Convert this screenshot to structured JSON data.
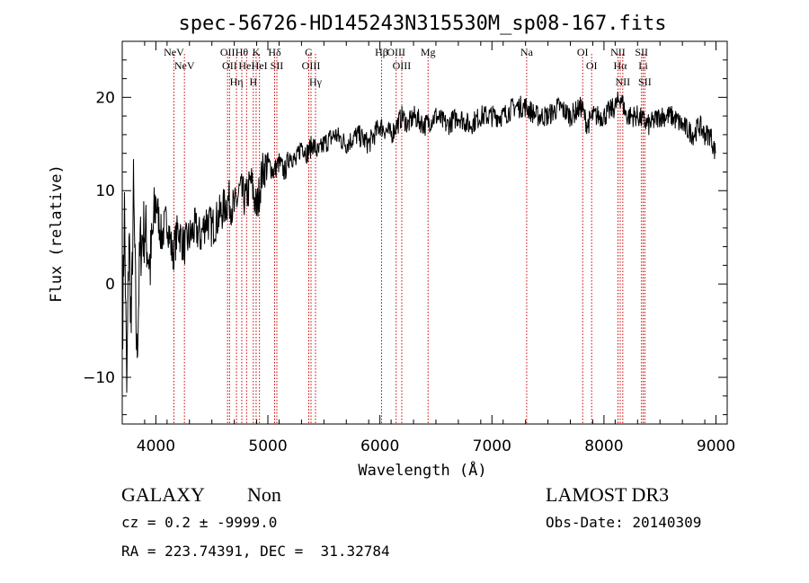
{
  "chart_data": {
    "type": "line",
    "title": "spec-56726-HD145243N315530M_sp08-167.fits",
    "xlabel": "Wavelength (Å)",
    "ylabel": "Flux (relative)",
    "xlim": [
      3700,
      9100
    ],
    "ylim": [
      -15,
      26
    ],
    "x_ticks": [
      4000,
      5000,
      6000,
      7000,
      8000,
      9000
    ],
    "x_tick_labels": [
      "4000",
      "5000",
      "6000",
      "7000",
      "8000",
      "9000"
    ],
    "y_ticks": [
      -10,
      0,
      10,
      20
    ],
    "y_tick_labels": [
      "−10",
      "0",
      "10",
      "20"
    ],
    "series": [
      {
        "name": "spectrum",
        "color": "#000000",
        "x": [
          3705,
          3720,
          3740,
          3760,
          3780,
          3800,
          3830,
          3860,
          3900,
          3950,
          4000,
          4050,
          4100,
          4150,
          4200,
          4250,
          4300,
          4350,
          4400,
          4450,
          4500,
          4550,
          4600,
          4650,
          4700,
          4750,
          4800,
          4850,
          4900,
          4950,
          5000,
          5050,
          5100,
          5150,
          5200,
          5250,
          5300,
          5350,
          5400,
          5450,
          5500,
          5600,
          5700,
          5800,
          5900,
          6000,
          6100,
          6200,
          6250,
          6300,
          6400,
          6500,
          6600,
          6700,
          6800,
          6900,
          7000,
          7100,
          7200,
          7300,
          7400,
          7500,
          7600,
          7700,
          7800,
          7850,
          7900,
          8000,
          8100,
          8150,
          8200,
          8300,
          8400,
          8500,
          8600,
          8700,
          8800,
          8850,
          8900,
          8950,
          8995
        ],
        "values": [
          -3,
          8,
          -12,
          6,
          -5,
          10,
          -8,
          4,
          6,
          2,
          9,
          5,
          7,
          3,
          6,
          4,
          5,
          6,
          5,
          7,
          6,
          7,
          8,
          9,
          8,
          10,
          9,
          11,
          8,
          12,
          13,
          12,
          13,
          12,
          14,
          13,
          15,
          14,
          15,
          14,
          15,
          16,
          15,
          16,
          15,
          17,
          16,
          18,
          17,
          18,
          17,
          18,
          17,
          18,
          17,
          18,
          18,
          18,
          19,
          19,
          18,
          18,
          19,
          18,
          19,
          17,
          18,
          18,
          19,
          20,
          18,
          18,
          17,
          18,
          18,
          17,
          16,
          17,
          16,
          16,
          14
        ]
      }
    ],
    "line_markers": [
      {
        "label": "NeV",
        "wavelength": 4161
      },
      {
        "label": "NeV",
        "wavelength": 4255
      },
      {
        "label": "OII",
        "wavelength": 4640
      },
      {
        "label": "OII",
        "wavelength": 4658
      },
      {
        "label": "Hη",
        "wavelength": 4720
      },
      {
        "label": "Hθ",
        "wavelength": 4767
      },
      {
        "label": "HeI",
        "wavelength": 4810
      },
      {
        "label": "H",
        "wavelength": 4870
      },
      {
        "label": "K",
        "wavelength": 4895
      },
      {
        "label": "HeI",
        "wavelength": 4925
      },
      {
        "label": "Hδ",
        "wavelength": 5060
      },
      {
        "label": "SII",
        "wavelength": 5080
      },
      {
        "label": "G",
        "wavelength": 5365
      },
      {
        "label": "OIII",
        "wavelength": 5385
      },
      {
        "label": "Hγ",
        "wavelength": 5425
      },
      {
        "label": "Hβ",
        "wavelength": 6015
      },
      {
        "label": "OIII",
        "wavelength": 6145
      },
      {
        "label": "OIII",
        "wavelength": 6195
      },
      {
        "label": "Mg",
        "wavelength": 6430
      },
      {
        "label": "Na",
        "wavelength": 7310
      },
      {
        "label": "OI",
        "wavelength": 7810
      },
      {
        "label": "OI",
        "wavelength": 7890
      },
      {
        "label": "NII",
        "wavelength": 8125
      },
      {
        "label": "Hα",
        "wavelength": 8145
      },
      {
        "label": "NII",
        "wavelength": 8168
      },
      {
        "label": "SII",
        "wavelength": 8335
      },
      {
        "label": "Li",
        "wavelength": 8350
      },
      {
        "label": "SII",
        "wavelength": 8365
      }
    ]
  },
  "info": {
    "class_label": "GALAXY",
    "subclass_label": "Non",
    "cz_text": "cz = 0.2 ± -9999.0",
    "radec_text": "RA = 223.74391, DEC =  31.32784",
    "survey_label": "LAMOST DR3",
    "obs_date_text": "Obs-Date: 20140309"
  },
  "colors": {
    "marker": "#cc0000",
    "axis": "#000000"
  }
}
